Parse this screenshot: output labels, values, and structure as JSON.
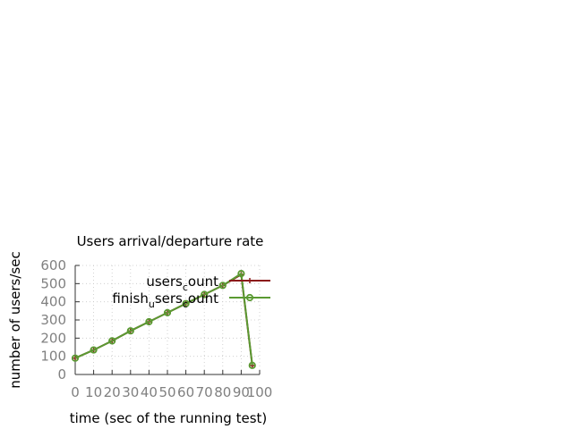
{
  "chart_data": {
    "type": "line",
    "title": "Users arrival/departure rate",
    "xlabel": "time (sec of the running test)",
    "ylabel": "number of users/sec",
    "xlim": [
      0,
      100
    ],
    "ylim": [
      0,
      600
    ],
    "x_ticks": [
      "0",
      "10",
      "20",
      "30",
      "40",
      "50",
      "60",
      "70",
      "80",
      "90",
      "100"
    ],
    "y_ticks": [
      "0",
      "100",
      "200",
      "300",
      "400",
      "500",
      "600"
    ],
    "grid": true,
    "legend_position": "top-right",
    "legend": [
      {
        "base": "users",
        "sub": "c",
        "rest": "ount"
      },
      {
        "base": "finish",
        "sub": "u",
        "rest": "sers",
        "sub2": "c",
        "rest2": "ount"
      }
    ],
    "series": [
      {
        "name": "users_count",
        "color": "#8b1a1a",
        "marker": "plus",
        "x": [
          0,
          10,
          20,
          30,
          40,
          50,
          60,
          70,
          80,
          90,
          96
        ],
        "y": [
          90,
          135,
          185,
          240,
          290,
          340,
          390,
          440,
          490,
          550,
          50
        ]
      },
      {
        "name": "finish_users_count",
        "color": "#5a9a32",
        "marker": "circle",
        "x": [
          0,
          10,
          20,
          30,
          40,
          50,
          60,
          70,
          80,
          90,
          96
        ],
        "y": [
          90,
          135,
          185,
          240,
          290,
          340,
          390,
          440,
          490,
          555,
          50
        ]
      }
    ]
  }
}
